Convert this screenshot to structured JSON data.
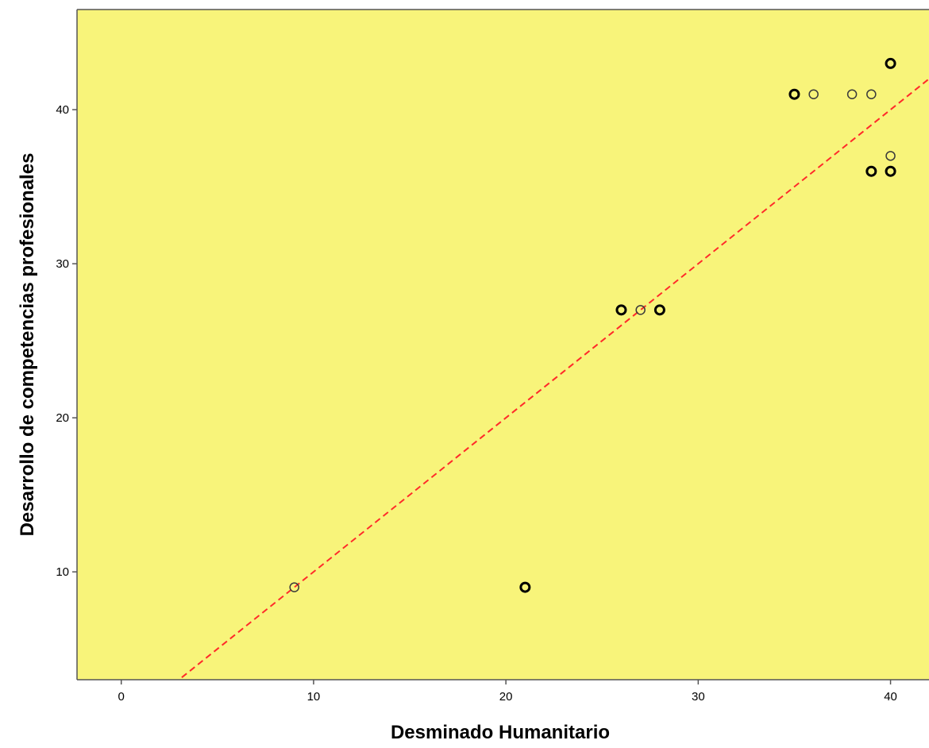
{
  "chart_data": {
    "type": "scatter",
    "title": "",
    "xlabel": "Desminado Humanitario",
    "ylabel": "Desarrollo de competencias profesionales",
    "xlim": [
      -2.3,
      42
    ],
    "ylim": [
      3,
      46.5
    ],
    "xticks": [
      0,
      10,
      20,
      30,
      40
    ],
    "yticks": [
      10,
      20,
      30,
      40
    ],
    "xtick_labels": [
      "0",
      "10",
      "20",
      "30",
      "40"
    ],
    "ytick_labels": [
      "10",
      "20",
      "30",
      "40"
    ],
    "grid": false,
    "legend": "none",
    "colors": {
      "plot_background": "#f8f47a",
      "frame": "#555555",
      "marker_edge": "#000000",
      "reference_line": "#ff2a2a"
    },
    "reference_line": {
      "style": "dashed",
      "slope": 1,
      "intercept": 0
    },
    "points": [
      {
        "x": 9,
        "y": 9,
        "bold": false
      },
      {
        "x": 21,
        "y": 9,
        "bold": true
      },
      {
        "x": 26,
        "y": 27,
        "bold": true
      },
      {
        "x": 27,
        "y": 27,
        "bold": false
      },
      {
        "x": 28,
        "y": 27,
        "bold": true
      },
      {
        "x": 35,
        "y": 41,
        "bold": true
      },
      {
        "x": 36,
        "y": 41,
        "bold": false
      },
      {
        "x": 38,
        "y": 41,
        "bold": false
      },
      {
        "x": 39,
        "y": 41,
        "bold": false
      },
      {
        "x": 39,
        "y": 36,
        "bold": true
      },
      {
        "x": 40,
        "y": 43,
        "bold": true
      },
      {
        "x": 40,
        "y": 37,
        "bold": false
      },
      {
        "x": 40,
        "y": 36,
        "bold": true
      }
    ]
  }
}
